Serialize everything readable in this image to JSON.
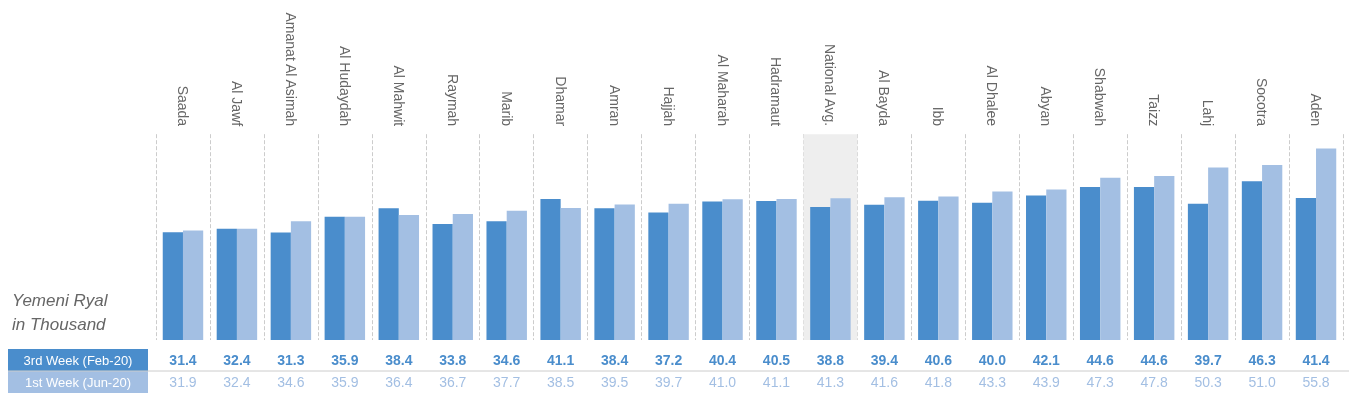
{
  "chart_data": {
    "type": "bar",
    "ylabel": "Yemeni Ryal in Thousand",
    "categories": [
      "Saada",
      "Al Jawf",
      "Amanat Al Asimah",
      "Al Hudaydah",
      "Al Mahwit",
      "Raymah",
      "Marib",
      "Dhamar",
      "Amran",
      "Hajjah",
      "Al Maharah",
      "Hadramaut",
      "National Avg.",
      "Al Bayda",
      "Ibb",
      "Al Dhalee",
      "Abyan",
      "Shabwah",
      "Taizz",
      "Lahj",
      "Socotra",
      "Aden"
    ],
    "series": [
      {
        "name": "3rd Week (Feb-20)",
        "color": "#4a8dcc",
        "values": [
          31.4,
          32.4,
          31.3,
          35.9,
          38.4,
          33.8,
          34.6,
          41.1,
          38.4,
          37.2,
          40.4,
          40.5,
          38.8,
          39.4,
          40.6,
          40.0,
          42.1,
          44.6,
          44.6,
          39.7,
          46.3,
          41.4
        ],
        "value_labels": [
          "31.4",
          "32.4",
          "31.3",
          "35.9",
          "38.4",
          "33.8",
          "34.6",
          "41.1",
          "38.4",
          "37.2",
          "40.4",
          "40.5",
          "38.8",
          "39.4",
          "40.6",
          "40.0",
          "42.1",
          "44.6",
          "44.6",
          "39.7",
          "46.3",
          "41.4"
        ]
      },
      {
        "name": "1st Week (Jun-20)",
        "color": "#a3bfe3",
        "values": [
          31.9,
          32.4,
          34.6,
          35.9,
          36.4,
          36.7,
          37.7,
          38.5,
          39.5,
          39.7,
          41.0,
          41.1,
          41.3,
          41.6,
          41.8,
          43.3,
          43.9,
          47.3,
          47.8,
          50.3,
          51.0,
          55.8
        ],
        "value_labels": [
          "31.9",
          "32.4",
          "34.6",
          "35.9",
          "36.4",
          "36.7",
          "37.7",
          "38.5",
          "39.5",
          "39.7",
          "41.0",
          "41.1",
          "41.3",
          "41.6",
          "41.8",
          "43.3",
          "43.9",
          "47.3",
          "47.8",
          "50.3",
          "51.0",
          "55.8"
        ]
      }
    ],
    "bands": [
      {
        "axis": "x",
        "from": "National Avg.",
        "to": "National Avg.",
        "color": "#eeeeee"
      }
    ],
    "grid": "x",
    "legend": "bottom left"
  }
}
